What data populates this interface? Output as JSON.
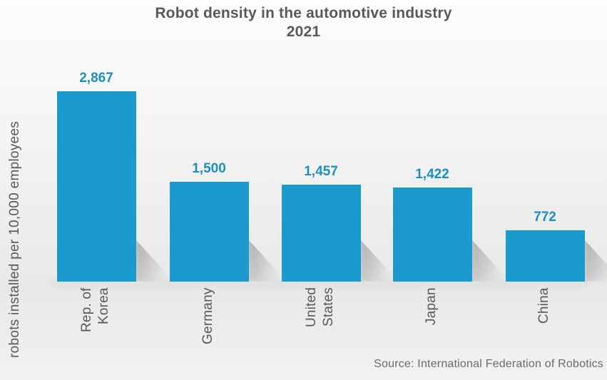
{
  "title": {
    "line1": "Robot density in the automotive industry",
    "line2": "2021"
  },
  "axes": {
    "ylabel": "robots installed per 10,000 employees"
  },
  "footer": {
    "source": "Source: International Federation of Robotics"
  },
  "colors": {
    "bar": "#1b9bcd",
    "value_label": "#1f8fc2",
    "title_text": "#58595b",
    "axis_text": "#58595b",
    "source_text": "#6b6b6b",
    "background": "#f0f0f0",
    "shadow": "#9a9a9a"
  },
  "chart_data": {
    "type": "bar",
    "title": "Robot density in the automotive industry 2021",
    "categories": [
      "Rep. of\nKorea",
      "Germany",
      "United\nStates",
      "Japan",
      "China"
    ],
    "values": [
      2867,
      1500,
      1457,
      1422,
      772
    ],
    "value_labels": [
      "2,867",
      "1,500",
      "1,457",
      "1,422",
      "772"
    ],
    "xlabel": "",
    "ylabel": "robots installed per 10,000 employees",
    "ylim": [
      0,
      2867
    ],
    "grid": false,
    "legend": "none",
    "bar_color": "#1b9bcd",
    "value_label_color": "#1f8fc2",
    "source": "Source: International Federation of Robotics"
  }
}
